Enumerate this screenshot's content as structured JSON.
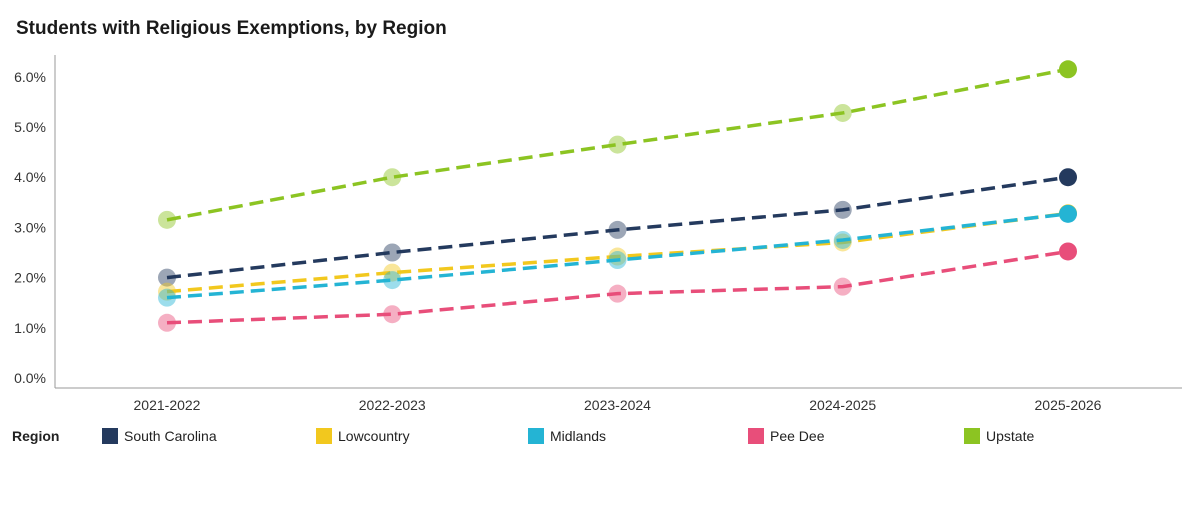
{
  "chart_data": {
    "type": "line",
    "title": "Students with Religious Exemptions, by Region",
    "categories": [
      "2021-2022",
      "2022-2023",
      "2023-2024",
      "2024-2025",
      "2025-2026"
    ],
    "ylim": [
      0,
      6.6
    ],
    "yticks": [
      0,
      1,
      2,
      3,
      4,
      5,
      6
    ],
    "ytick_labels": [
      "0.0%",
      "1.0%",
      "2.0%",
      "3.0%",
      "4.0%",
      "5.0%",
      "6.0%"
    ],
    "legend_title": "Region",
    "legend_position": "bottom",
    "series": [
      {
        "name": "South Carolina",
        "color": "#243a5e",
        "values": [
          2.0,
          2.5,
          2.95,
          3.35,
          4.0
        ]
      },
      {
        "name": "Lowcountry",
        "color": "#f2c81e",
        "values": [
          1.72,
          2.1,
          2.42,
          2.7,
          3.28
        ]
      },
      {
        "name": "Midlands",
        "color": "#24b4d4",
        "values": [
          1.6,
          1.95,
          2.35,
          2.75,
          3.27
        ]
      },
      {
        "name": "Pee Dee",
        "color": "#e84e7a",
        "values": [
          1.1,
          1.27,
          1.68,
          1.82,
          2.52
        ]
      },
      {
        "name": "Upstate",
        "color": "#8cc422",
        "values": [
          3.15,
          4.0,
          4.65,
          5.28,
          6.15
        ]
      }
    ]
  }
}
